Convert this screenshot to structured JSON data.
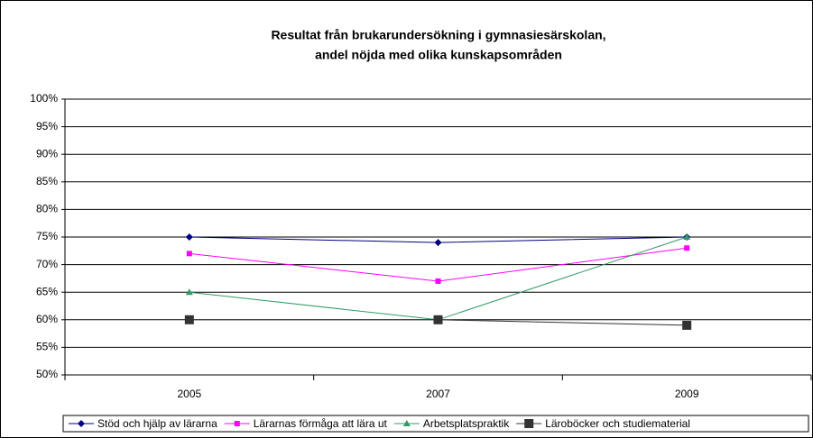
{
  "chart_data": {
    "type": "line",
    "title": [
      "Resultat från brukarundersökning i  gymnasiesärskolan,",
      "andel nöjda med olika kunskapsområden"
    ],
    "categories": [
      "2005",
      "2007",
      "2009"
    ],
    "series": [
      {
        "name": "Stöd och hjälp av lärarna",
        "color": "#000080",
        "marker": "diamond",
        "values": [
          75,
          74,
          75
        ]
      },
      {
        "name": "Lärarnas förmåga att lära ut",
        "color": "#ff00ff",
        "marker": "square",
        "values": [
          72,
          67,
          73
        ]
      },
      {
        "name": "Arbetsplatspraktik",
        "color": "#339966",
        "marker": "triangle",
        "values": [
          65,
          60,
          75
        ]
      },
      {
        "name": "Läroböcker och studiematerial",
        "color": "#333333",
        "marker": "bigsquare",
        "values": [
          60,
          60,
          59
        ]
      }
    ],
    "ylim": [
      50,
      100
    ],
    "yticks": [
      {
        "value": 50,
        "label": "50%"
      },
      {
        "value": 55,
        "label": "55%"
      },
      {
        "value": 60,
        "label": "60%"
      },
      {
        "value": 65,
        "label": "65%"
      },
      {
        "value": 70,
        "label": "70%"
      },
      {
        "value": 75,
        "label": "75%"
      },
      {
        "value": 80,
        "label": "80%"
      },
      {
        "value": 85,
        "label": "85%"
      },
      {
        "value": 90,
        "label": "90%"
      },
      {
        "value": 95,
        "label": "95%"
      },
      {
        "value": 100,
        "label": "100%"
      }
    ],
    "grid": true,
    "legend": "bottom"
  }
}
